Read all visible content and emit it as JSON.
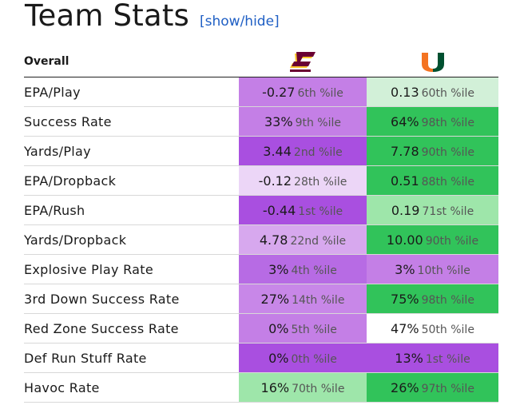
{
  "header": {
    "title": "Team Stats",
    "toggle_label": "[show/hide]"
  },
  "table": {
    "label_header": "Overall",
    "teams": [
      {
        "logo": "cmu-c-logo-icon",
        "color": "#6a0032",
        "accent": "#ffc82e"
      },
      {
        "logo": "miami-u-logo-icon",
        "color": "#005030",
        "accent": "#f47321"
      }
    ],
    "rows": [
      {
        "metric": "EPA/Play",
        "a": {
          "value": "-0.27",
          "pct": "6th %ile",
          "bg": "#c47fe6"
        },
        "b": {
          "value": "0.13",
          "pct": "60th %ile",
          "bg": "#d2f0d8"
        }
      },
      {
        "metric": "Success Rate",
        "a": {
          "value": "33%",
          "pct": "9th %ile",
          "bg": "#c47fe6"
        },
        "b": {
          "value": "64%",
          "pct": "98th %ile",
          "bg": "#31c35a"
        }
      },
      {
        "metric": "Yards/Play",
        "a": {
          "value": "3.44",
          "pct": "2nd %ile",
          "bg": "#a94fe0"
        },
        "b": {
          "value": "7.78",
          "pct": "90th %ile",
          "bg": "#31c35a"
        }
      },
      {
        "metric": "EPA/Dropback",
        "a": {
          "value": "-0.12",
          "pct": "28th %ile",
          "bg": "#ecd6f7"
        },
        "b": {
          "value": "0.51",
          "pct": "88th %ile",
          "bg": "#31c35a"
        }
      },
      {
        "metric": "EPA/Rush",
        "a": {
          "value": "-0.44",
          "pct": "1st %ile",
          "bg": "#a94fe0"
        },
        "b": {
          "value": "0.19",
          "pct": "71st %ile",
          "bg": "#9ee6aa"
        }
      },
      {
        "metric": "Yards/Dropback",
        "a": {
          "value": "4.78",
          "pct": "22nd %ile",
          "bg": "#d7a8ee"
        },
        "b": {
          "value": "10.00",
          "pct": "90th %ile",
          "bg": "#31c35a"
        }
      },
      {
        "metric": "Explosive Play Rate",
        "a": {
          "value": "3%",
          "pct": "4th %ile",
          "bg": "#b76be4"
        },
        "b": {
          "value": "3%",
          "pct": "10th %ile",
          "bg": "#c47fe6"
        }
      },
      {
        "metric": "3rd Down Success Rate",
        "a": {
          "value": "27%",
          "pct": "14th %ile",
          "bg": "#c887e8"
        },
        "b": {
          "value": "75%",
          "pct": "98th %ile",
          "bg": "#31c35a"
        }
      },
      {
        "metric": "Red Zone Success Rate",
        "a": {
          "value": "0%",
          "pct": "5th %ile",
          "bg": "#c47fe6"
        },
        "b": {
          "value": "47%",
          "pct": "50th %ile",
          "bg": "#ffffff"
        }
      },
      {
        "metric": "Def Run Stuff Rate",
        "a": {
          "value": "0%",
          "pct": "0th %ile",
          "bg": "#a94fe0"
        },
        "b": {
          "value": "13%",
          "pct": "1st %ile",
          "bg": "#a94fe0"
        }
      },
      {
        "metric": "Havoc Rate",
        "a": {
          "value": "16%",
          "pct": "70th %ile",
          "bg": "#9ee6aa"
        },
        "b": {
          "value": "26%",
          "pct": "97th %ile",
          "bg": "#31c35a"
        }
      }
    ]
  }
}
